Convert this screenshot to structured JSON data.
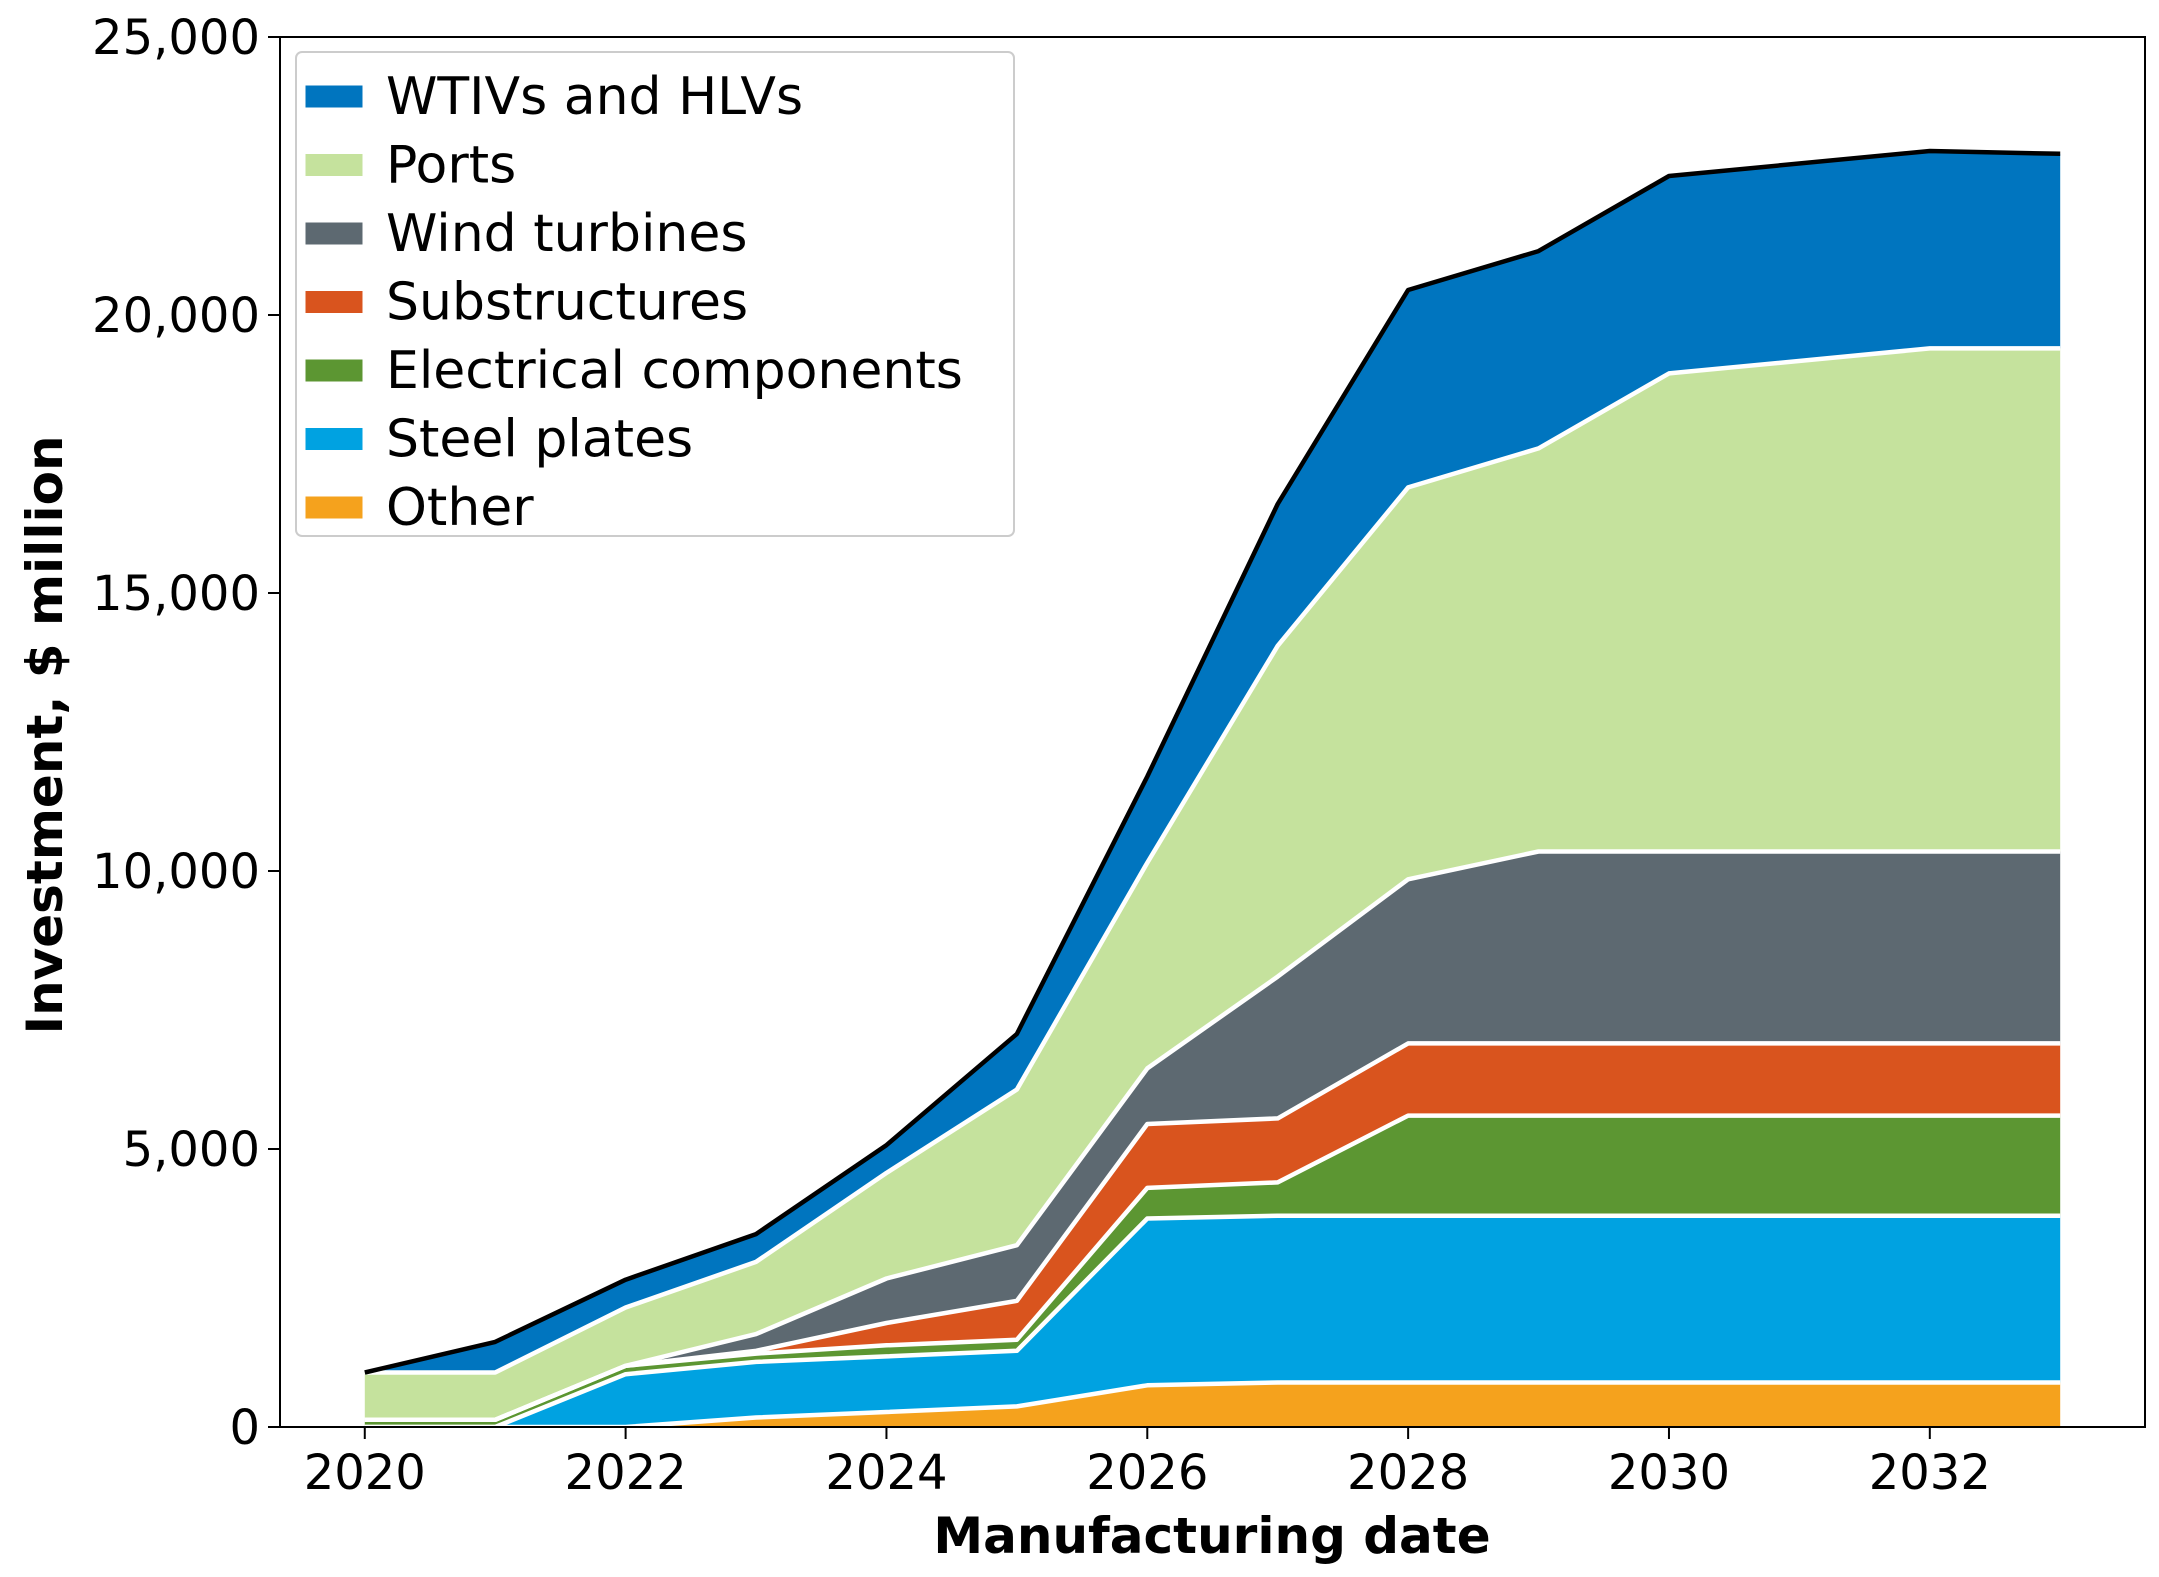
{
  "chart_data": {
    "type": "area",
    "stacked": true,
    "title": "",
    "xlabel": "Manufacturing date",
    "ylabel": "Investment, $ million",
    "x": [
      2020,
      2021,
      2022,
      2023,
      2024,
      2025,
      2026,
      2027,
      2028,
      2029,
      2030,
      2032,
      2033
    ],
    "xlim": [
      2019.35,
      2033.65
    ],
    "ylim": [
      0,
      25000
    ],
    "xticks": [
      2020,
      2022,
      2024,
      2026,
      2028,
      2030,
      2032
    ],
    "xtick_labels": [
      "2020",
      "2022",
      "2024",
      "2026",
      "2028",
      "2030",
      "2032"
    ],
    "yticks": [
      0,
      5000,
      10000,
      15000,
      20000,
      25000
    ],
    "ytick_labels": [
      "0",
      "5,000",
      "10,000",
      "15,000",
      "20,000",
      "25,000"
    ],
    "grid": false,
    "legend_position": "top-left",
    "series": [
      {
        "name": "Other",
        "color": "#F5A21D",
        "values": [
          0,
          0,
          0,
          170,
          270,
          370,
          750,
          800,
          800,
          800,
          800,
          800,
          800
        ]
      },
      {
        "name": "Steel plates",
        "color": "#00A2E1",
        "values": [
          0,
          0,
          950,
          1000,
          1000,
          1000,
          3000,
          3000,
          3000,
          3000,
          3000,
          3000,
          3000
        ]
      },
      {
        "name": "Electrical components",
        "color": "#5C9632",
        "values": [
          130,
          130,
          150,
          150,
          200,
          200,
          550,
          600,
          1800,
          1800,
          1800,
          1800,
          1800
        ]
      },
      {
        "name": "Substructures",
        "color": "#D9541E",
        "values": [
          0,
          0,
          0,
          50,
          400,
          700,
          1150,
          1150,
          1300,
          1300,
          1300,
          1300,
          1300
        ]
      },
      {
        "name": "Wind turbines",
        "color": "#5D6971",
        "values": [
          0,
          0,
          0,
          300,
          800,
          1000,
          1000,
          2550,
          2950,
          3450,
          3450,
          3450,
          3450
        ]
      },
      {
        "name": "Ports",
        "color": "#C5E29D",
        "values": [
          850,
          850,
          1050,
          1300,
          1900,
          2800,
          3700,
          5950,
          7050,
          7250,
          8600,
          9050,
          9050
        ]
      },
      {
        "name": "WTIVs and HLVs",
        "color": "#0075BF",
        "values": [
          0,
          550,
          500,
          500,
          500,
          1000,
          1550,
          2550,
          3550,
          3550,
          3550,
          3550,
          3500
        ]
      }
    ]
  }
}
